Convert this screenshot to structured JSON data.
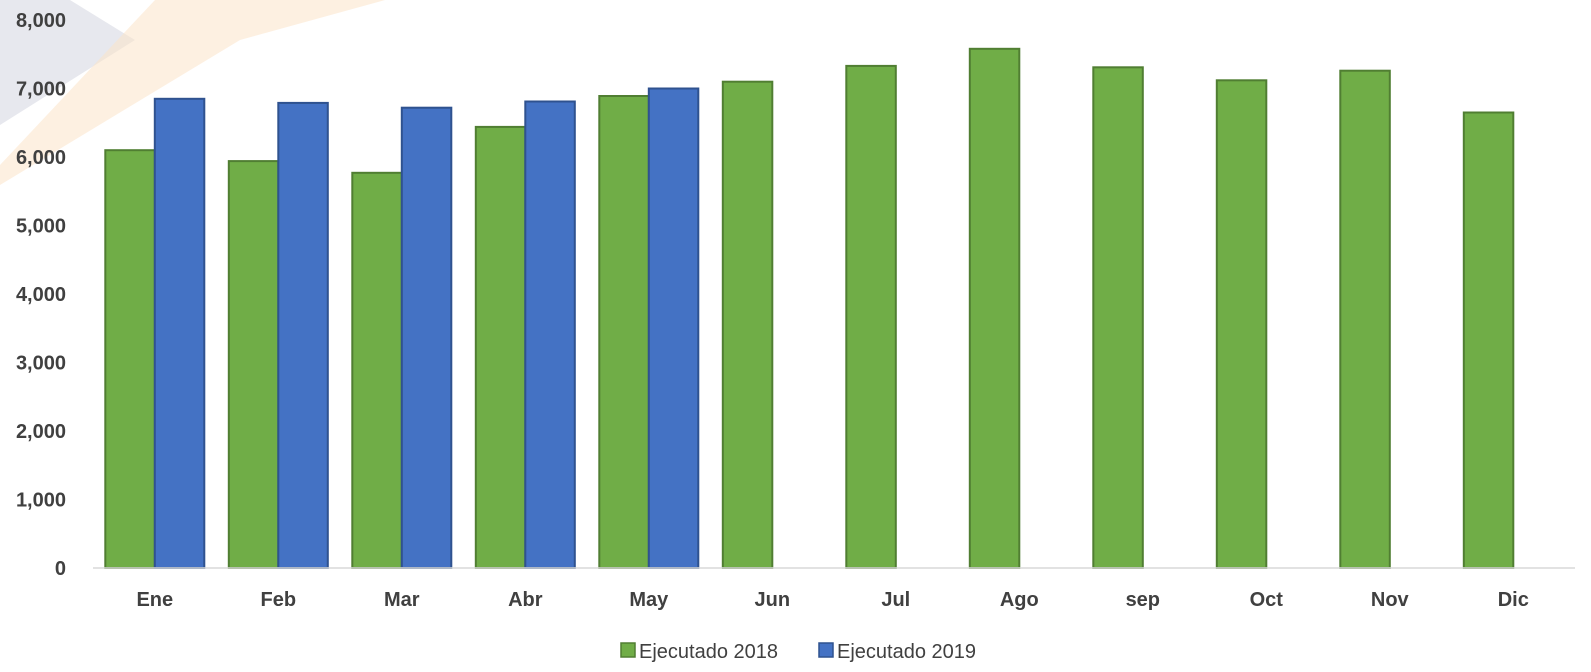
{
  "chart_data": {
    "type": "bar",
    "categories": [
      "Ene",
      "Feb",
      "Mar",
      "Abr",
      "May",
      "Jun",
      "Jul",
      "Ago",
      "sep",
      "Oct",
      "Nov",
      "Dic"
    ],
    "series": [
      {
        "name": "Ejecutado 2018",
        "color": "#70AD47",
        "border": "#507E32",
        "values": [
          6100,
          5940,
          5770,
          6440,
          6890,
          7100,
          7330,
          7580,
          7310,
          7120,
          7260,
          6650
        ]
      },
      {
        "name": "Ejecutado 2019",
        "color": "#4472C4",
        "border": "#2F528F",
        "values": [
          6850,
          6790,
          6720,
          6810,
          7000,
          null,
          null,
          null,
          null,
          null,
          null,
          null
        ]
      }
    ],
    "ylim": [
      0,
      8000
    ],
    "yticks": [
      0,
      1000,
      2000,
      3000,
      4000,
      5000,
      6000,
      7000,
      8000
    ],
    "ytick_labels": [
      "0",
      "1,000",
      "2,000",
      "3,000",
      "4,000",
      "5,000",
      "6,000",
      "7,000",
      "8,000"
    ],
    "grid": false,
    "legend_position": "bottom-center"
  }
}
